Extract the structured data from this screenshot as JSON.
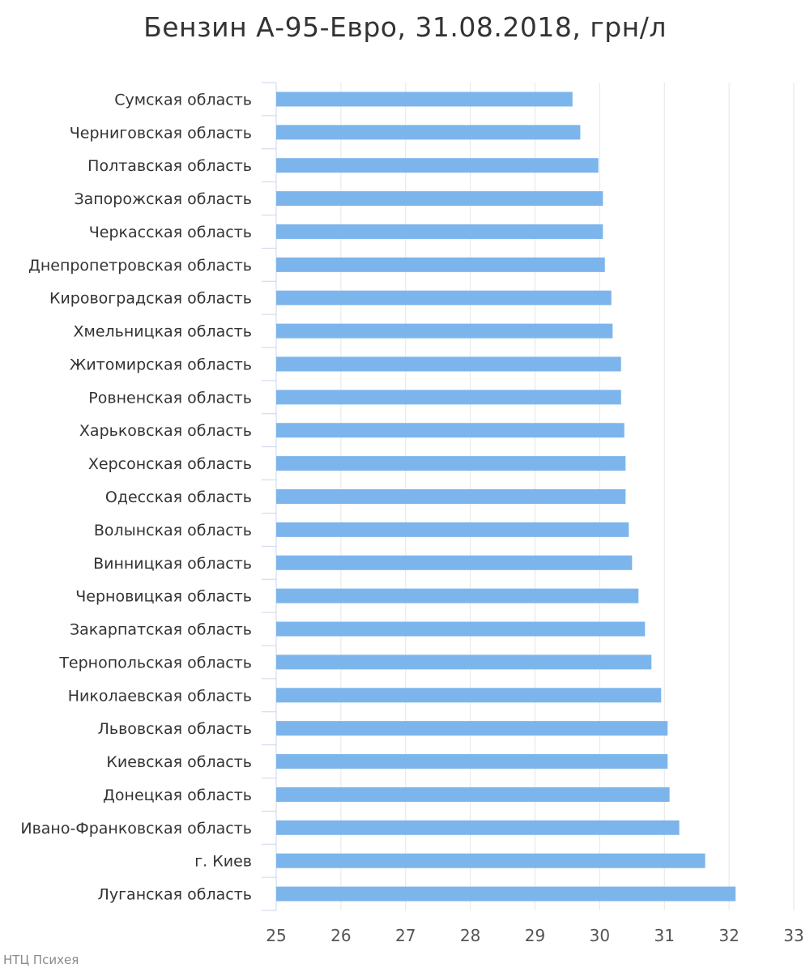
{
  "chart_data": {
    "type": "bar",
    "orientation": "horizontal",
    "title": "Бензин А-95-Евро, 31.08.2018, грн/л",
    "xlabel": "",
    "ylabel": "",
    "xlim": [
      25,
      33
    ],
    "ticks": [
      25,
      26,
      27,
      28,
      29,
      30,
      31,
      32,
      33
    ],
    "grid": true,
    "bar_color": "#7cb5ec",
    "categories": [
      "Сумская область",
      "Черниговская область",
      "Полтавская область",
      "Запорожская область",
      "Черкасская область",
      "Днепропетровская область",
      "Кировоградская область",
      "Хмельницкая область",
      "Житомирская область",
      "Ровненская область",
      "Харьковская область",
      "Херсонская область",
      "Одесская область",
      "Волынская область",
      "Винницкая область",
      "Черновицкая область",
      "Закарпатская область",
      "Тернопольская область",
      "Николаевская область",
      "Львовская область",
      "Киевская область",
      "Донецкая область",
      "Ивано-Франковская область",
      "г. Киев",
      "Луганская область"
    ],
    "values": [
      29.58,
      29.7,
      29.98,
      30.05,
      30.05,
      30.08,
      30.18,
      30.2,
      30.33,
      30.33,
      30.38,
      30.4,
      30.4,
      30.45,
      30.5,
      30.6,
      30.7,
      30.8,
      30.95,
      31.05,
      31.05,
      31.08,
      31.23,
      31.63,
      32.1
    ]
  },
  "credits": "НТЦ Психея"
}
